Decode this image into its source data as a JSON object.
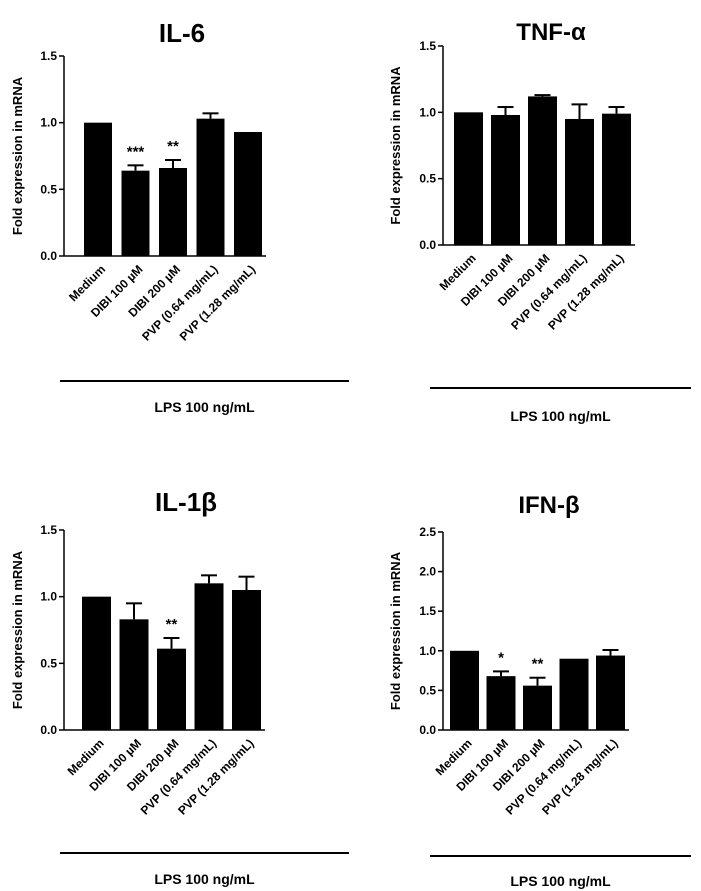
{
  "chart_data": [
    {
      "type": "bar",
      "title": "IL-6",
      "ylabel": "Fold expression in mRNA",
      "ylim": [
        0,
        1.5
      ],
      "yticks": [
        "0.0",
        "0.5",
        "1.0",
        "1.5"
      ],
      "categories": [
        "Medium",
        "DIBI 100 µM",
        "DIBI 200 µM",
        "PVP (0.64 mg/mL)",
        "PVP (1.28 mg/mL)"
      ],
      "values": [
        1.0,
        0.64,
        0.66,
        1.03,
        0.93
      ],
      "errors": [
        0.0,
        0.04,
        0.06,
        0.04,
        0.0
      ],
      "significance": [
        "",
        "***",
        "**",
        "",
        ""
      ],
      "treatment_label": "LPS 100 ng/mL"
    },
    {
      "type": "bar",
      "title": "TNF-α",
      "ylabel": "Fold expression in mRNA",
      "ylim": [
        0,
        1.5
      ],
      "yticks": [
        "0.0",
        "0.5",
        "1.0",
        "1.5"
      ],
      "categories": [
        "Medium",
        "DIBI 100 µM",
        "DIBI 200 µM",
        "PVP (0.64 mg/mL)",
        "PVP (1.28 mg/mL)"
      ],
      "values": [
        1.0,
        0.98,
        1.12,
        0.95,
        0.99
      ],
      "errors": [
        0.0,
        0.06,
        0.01,
        0.11,
        0.05
      ],
      "significance": [
        "",
        "",
        "",
        "",
        ""
      ],
      "treatment_label": "LPS 100 ng/mL"
    },
    {
      "type": "bar",
      "title": "IL-1β",
      "ylabel": "Fold expression in mRNA",
      "ylim": [
        0,
        1.5
      ],
      "yticks": [
        "0.0",
        "0.5",
        "1.0",
        "1.5"
      ],
      "categories": [
        "Medium",
        "DIBI 100 µM",
        "DIBI 200 µM",
        "PVP (0.64 mg/mL)",
        "PVP (1.28 mg/mL)"
      ],
      "values": [
        1.0,
        0.83,
        0.61,
        1.1,
        1.05
      ],
      "errors": [
        0.0,
        0.12,
        0.08,
        0.06,
        0.1
      ],
      "significance": [
        "",
        "",
        "**",
        "",
        ""
      ],
      "treatment_label": "LPS 100 ng/mL"
    },
    {
      "type": "bar",
      "title": "IFN-β",
      "ylabel": "Fold expression in mRNA",
      "ylim": [
        0,
        2.5
      ],
      "yticks": [
        "0.0",
        "0.5",
        "1.0",
        "1.5",
        "2.0",
        "2.5"
      ],
      "categories": [
        "Medium",
        "DIBI 100 µM",
        "DIBI 200 µM",
        "PVP (0.64 mg/mL)",
        "PVP (1.28 mg/mL)"
      ],
      "values": [
        1.0,
        0.68,
        0.56,
        0.9,
        0.94
      ],
      "errors": [
        0.0,
        0.06,
        0.1,
        0.0,
        0.07
      ],
      "significance": [
        "",
        "*",
        "**",
        "",
        ""
      ],
      "treatment_label": "LPS 100 ng/mL"
    }
  ]
}
